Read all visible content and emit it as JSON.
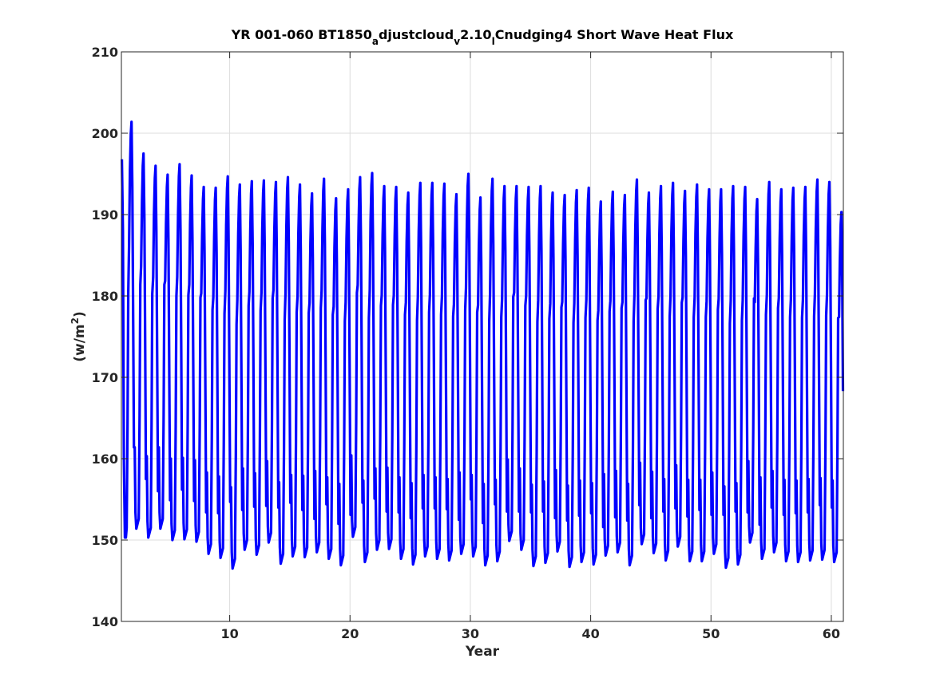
{
  "chart_data": {
    "type": "line",
    "title_parts": {
      "t1": "YR 001-060 BT1850",
      "s1": "a",
      "t2": "djustcloud",
      "s2": "v",
      "t3": "2.10",
      "s3": "l",
      "t4": "Cnudging4 Short Wave Heat Flux"
    },
    "xlabel": "Year",
    "ylabel_parts": {
      "base": "(w/m",
      "sup": "2",
      "close": ")"
    },
    "xlim": [
      1,
      61
    ],
    "ylim": [
      140,
      210
    ],
    "xticks": [
      10,
      20,
      30,
      40,
      50,
      60
    ],
    "yticks": [
      140,
      150,
      160,
      170,
      180,
      190,
      200,
      210
    ],
    "grid": true,
    "line_color": "#0000ff",
    "series": [
      {
        "x_start": 1.04,
        "x_step": 0.0833333,
        "annual_max": [
          201.4,
          197.5,
          196.0,
          194.9,
          196.2,
          194.8,
          193.4,
          193.3,
          194.7,
          193.7,
          194.1,
          194.2,
          194.0,
          194.6,
          193.7,
          192.6,
          194.4,
          192.0,
          193.1,
          194.6,
          195.1,
          193.5,
          193.4,
          192.7,
          193.9,
          193.9,
          193.8,
          192.5,
          195.0,
          192.1,
          194.4,
          193.5,
          193.5,
          193.4,
          193.5,
          192.7,
          192.4,
          193.0,
          193.3,
          191.6,
          192.8,
          192.4,
          194.3,
          192.7,
          193.5,
          193.9,
          192.9,
          193.7,
          193.1,
          193.1,
          193.5,
          193.4,
          191.9,
          194.0,
          193.1,
          193.3,
          193.4,
          194.3,
          194.0,
          190.3
        ],
        "annual_min": [
          150.3,
          151.4,
          150.3,
          151.4,
          150.0,
          150.1,
          149.8,
          148.3,
          147.8,
          146.5,
          148.8,
          148.2,
          149.7,
          147.1,
          148.0,
          147.9,
          148.5,
          147.7,
          146.9,
          150.4,
          147.3,
          148.8,
          148.9,
          147.7,
          147.0,
          148.0,
          147.7,
          147.5,
          148.3,
          148.0,
          146.9,
          147.4,
          149.9,
          148.8,
          146.8,
          147.2,
          148.6,
          146.7,
          147.3,
          147.0,
          148.1,
          148.5,
          146.9,
          149.5,
          148.4,
          147.5,
          149.2,
          147.4,
          147.4,
          148.3,
          146.6,
          147.0,
          149.7,
          147.7,
          148.5,
          147.4,
          147.3,
          147.5,
          147.6,
          147.3
        ],
        "first_values": [
          196.8,
          188.0,
          160.0,
          150.3
        ]
      }
    ]
  }
}
